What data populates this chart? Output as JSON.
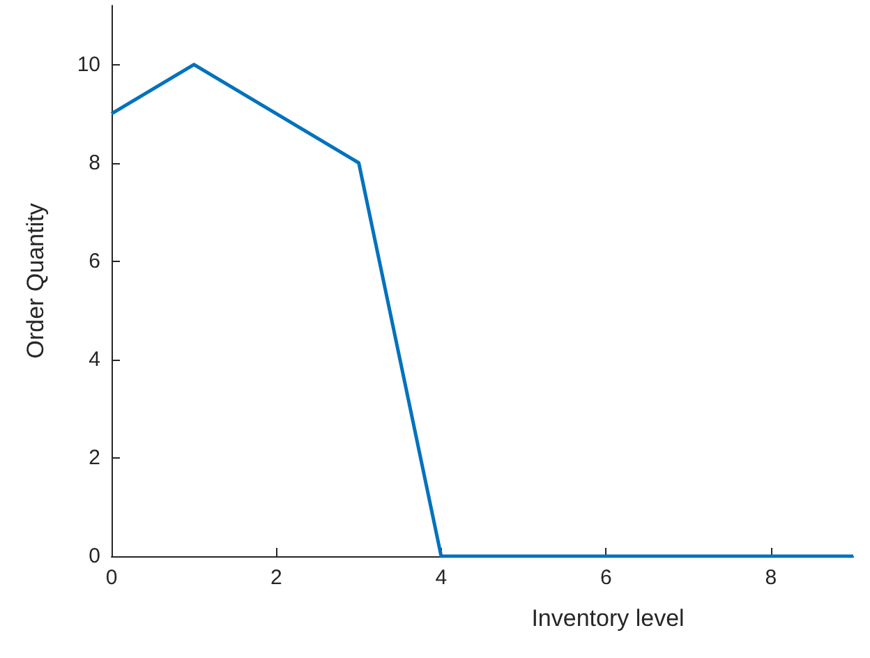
{
  "chart_data": {
    "type": "line",
    "xlabel": "Inventory level",
    "ylabel": "Order Quantity",
    "x": [
      0,
      1,
      2,
      3,
      4,
      5,
      6,
      7,
      8,
      9
    ],
    "series": [
      {
        "color": "#0072bd",
        "values": [
          9,
          10,
          9,
          8,
          0,
          0,
          0,
          0,
          0,
          0
        ]
      }
    ],
    "xlim": [
      0,
      9
    ],
    "xticks": [
      0,
      2,
      4,
      6,
      8
    ],
    "ylim": [
      0,
      11.2
    ],
    "yticks": [
      0,
      2,
      4,
      6,
      8,
      10
    ],
    "marker": "none",
    "line_style": "solid"
  }
}
